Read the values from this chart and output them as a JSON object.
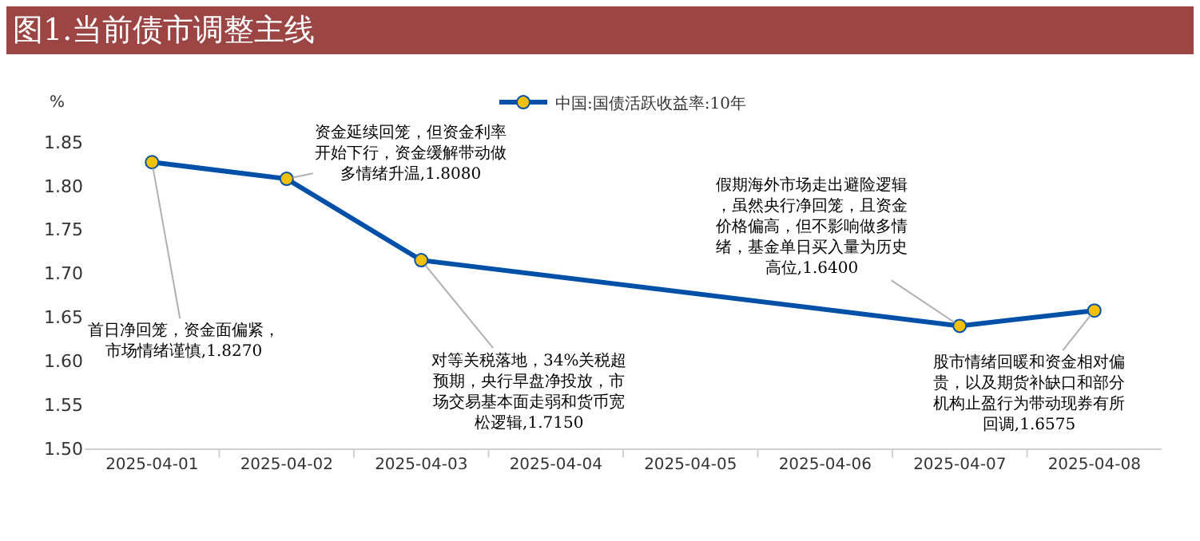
{
  "chart_data": {
    "type": "line",
    "title": "图1.当前债市调整主线",
    "ylabel": "%",
    "categories": [
      "2025-04-01",
      "2025-04-02",
      "2025-04-03",
      "2025-04-04",
      "2025-04-05",
      "2025-04-06",
      "2025-04-07",
      "2025-04-08"
    ],
    "series": [
      {
        "name": "中国:国债活跃收益率:10年",
        "color": "#0050a8",
        "values": [
          1.827,
          1.808,
          1.715,
          null,
          null,
          null,
          1.64,
          1.6575
        ]
      }
    ],
    "ylim": [
      1.5,
      1.85
    ],
    "yticks": [
      {
        "value": 1.5,
        "label": "1.50"
      },
      1.55,
      {
        "value": 1.6,
        "label": "1.60"
      },
      1.65,
      {
        "value": 1.7,
        "label": "1.70"
      },
      1.75,
      {
        "value": 1.8,
        "label": "1.80"
      },
      1.85
    ],
    "grid": false,
    "legend": "top",
    "marker": "circle",
    "line_style": "solid",
    "annotations": [
      {
        "text": "首日净回笼，资金面偏紧，市场情绪谨慎,1.8270",
        "x": "2025-04-01",
        "y": 1.827
      },
      {
        "text": "资金延续回笼，但资金利率开始下行，资金缓解带动做多情绪升温,1.8080",
        "x": "2025-04-02",
        "y": 1.808
      },
      {
        "text": "对等关税落地，34%关税超预期，央行早盘净投放，市场交易基本面走弱和货币宽松逻辑,1.7150",
        "x": "2025-04-03",
        "y": 1.715
      },
      {
        "text": "假期海外市场走出避险逻辑，虽然央行净回笼，且资金价格偏高，但不影响做多情绪，基金单日买入量为历史高位,1.6400",
        "x": "2025-04-07",
        "y": 1.64
      },
      {
        "text": "股市情绪回暖和资金相对偏贵，以及期货补缺口和部分机构止盈行为带动现券有所回调,1.6575",
        "x": "2025-04-08",
        "y": 1.6575
      }
    ]
  }
}
